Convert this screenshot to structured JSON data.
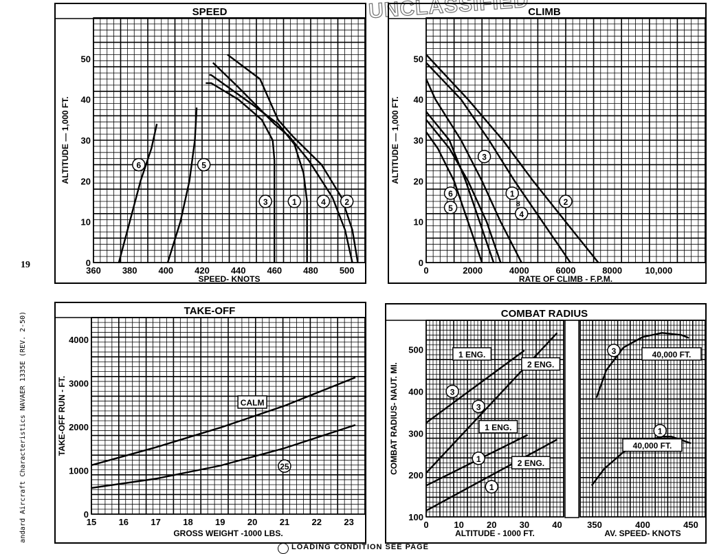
{
  "page_number": "19",
  "side_caption": "andard Aircraft Characteristics NAVAER 1335E (REV. 2-50)",
  "stamp_text": "UNCLASSIFIED",
  "footer_text": "LOADING CONDITION SEE PAGE",
  "chart_data": [
    {
      "id": "speed",
      "type": "line",
      "title": "SPEED",
      "xlabel": "SPEED- KNOTS",
      "ylabel": "ALTITUDE — 1,000 FT.",
      "xlim": [
        360,
        510
      ],
      "ylim": [
        0,
        60
      ],
      "x_ticks": [
        "360",
        "380",
        "400",
        "420",
        "440",
        "460",
        "480",
        "500"
      ],
      "y_ticks": [
        "0",
        "10",
        "20",
        "30",
        "40",
        "50"
      ],
      "grid": true,
      "series": [
        {
          "name": "6",
          "points": [
            [
              374,
              0
            ],
            [
              380,
              10
            ],
            [
              386,
              20
            ],
            [
              392,
              28
            ],
            [
              395,
              34
            ]
          ],
          "label_at": [
            385,
            24
          ]
        },
        {
          "name": "5",
          "points": [
            [
              401,
              0
            ],
            [
              408,
              10
            ],
            [
              413,
              20
            ],
            [
              416,
              30
            ],
            [
              417,
              38
            ]
          ],
          "label_at": [
            421,
            24
          ]
        },
        {
          "name": "3",
          "points": [
            [
              460,
              0
            ],
            [
              460,
              25
            ],
            [
              459,
              30
            ],
            [
              453,
              35
            ],
            [
              440,
              40
            ],
            [
              425,
              44
            ],
            [
              422,
              44
            ]
          ],
          "label_at": [
            455,
            15
          ]
        },
        {
          "name": "1",
          "points": [
            [
              478,
              0
            ],
            [
              478,
              15
            ],
            [
              476,
              22
            ],
            [
              471,
              29
            ],
            [
              462,
              34
            ],
            [
              447,
              39
            ],
            [
              425,
              46
            ],
            [
              424,
              46
            ]
          ],
          "label_at": [
            471,
            15
          ]
        },
        {
          "name": "4",
          "points": [
            [
              503,
              0
            ],
            [
              499,
              8
            ],
            [
              492,
              16
            ],
            [
              479,
              25
            ],
            [
              468,
              31
            ],
            [
              460,
              34
            ],
            [
              440,
              43
            ],
            [
              426,
              49
            ]
          ],
          "label_at": [
            487,
            15
          ]
        },
        {
          "name": "2",
          "points": [
            [
              506,
              0
            ],
            [
              503,
              8
            ],
            [
              497,
              16
            ],
            [
              486,
              24
            ],
            [
              470,
              31
            ],
            [
              462,
              35
            ],
            [
              460,
              37
            ],
            [
              452,
              45
            ],
            [
              434,
              51
            ]
          ],
          "label_at": [
            500,
            15
          ]
        }
      ]
    },
    {
      "id": "climb",
      "type": "line",
      "title": "CLIMB",
      "xlabel": "RATE OF CLIMB - F.P.M.",
      "ylabel": "ALTITUDE — 1,000 FT.",
      "xlim": [
        0,
        12000
      ],
      "ylim": [
        0,
        60
      ],
      "x_ticks": [
        "0",
        "2000",
        "4000",
        "6000",
        "8000",
        "10,000"
      ],
      "y_ticks": [
        "0",
        "10",
        "20",
        "30",
        "40",
        "50"
      ],
      "grid": true,
      "series": [
        {
          "name": "2",
          "points": [
            [
              7400,
              0
            ],
            [
              6000,
              10
            ],
            [
              4600,
              20
            ],
            [
              3300,
              30
            ],
            [
              1800,
              40
            ],
            [
              0,
              51
            ]
          ],
          "label_at": [
            6000,
            15
          ]
        },
        {
          "name": "4",
          "points": [
            [
              6200,
              0
            ],
            [
              5000,
              10
            ],
            [
              3800,
              20
            ],
            [
              2700,
              30
            ],
            [
              1500,
              40
            ],
            [
              0,
              49
            ]
          ],
          "label_at": [
            4100,
            12
          ]
        },
        {
          "name": "1",
          "points": [
            [
              4100,
              0
            ],
            [
              3200,
              10
            ],
            [
              2400,
              20
            ],
            [
              1500,
              30
            ],
            [
              400,
              40
            ],
            [
              0,
              45
            ]
          ],
          "label_at": [
            3700,
            17
          ]
        },
        {
          "name": "3",
          "points": [
            [
              2900,
              0
            ],
            [
              2300,
              10
            ],
            [
              1700,
              20
            ],
            [
              1000,
              30
            ],
            [
              0,
              37
            ]
          ],
          "label_at": [
            2500,
            26
          ]
        },
        {
          "name": "6",
          "points": [
            [
              3200,
              0
            ],
            [
              2600,
              10
            ],
            [
              1800,
              20
            ],
            [
              1000,
              28
            ],
            [
              0,
              35
            ]
          ],
          "label_at": [
            1050,
            17
          ]
        },
        {
          "name": "5",
          "points": [
            [
              2400,
              0
            ],
            [
              1800,
              10
            ],
            [
              1200,
              20
            ],
            [
              500,
              28
            ],
            [
              0,
              32
            ]
          ],
          "label_at": [
            1050,
            13.5
          ]
        }
      ],
      "annotations": [
        {
          "text": "8",
          "at": [
            3950,
            14.5
          ]
        }
      ]
    },
    {
      "id": "takeoff",
      "type": "line",
      "title": "TAKE-OFF",
      "xlabel": "GROSS WEIGHT -1000 LBS.",
      "ylabel": "TAKE-OFF RUN - FT.",
      "xlim": [
        15,
        23.5
      ],
      "ylim": [
        0,
        4500
      ],
      "x_ticks": [
        "15",
        "16",
        "17",
        "18",
        "19",
        "20",
        "21",
        "22",
        "23"
      ],
      "y_ticks": [
        "0",
        "1000",
        "2000",
        "3000",
        "4000"
      ],
      "grid": true,
      "series": [
        {
          "name": "CALM",
          "points": [
            [
              15,
              1120
            ],
            [
              17,
              1530
            ],
            [
              19,
              1980
            ],
            [
              21,
              2480
            ],
            [
              23.2,
              3130
            ]
          ],
          "label_at": [
            20,
            2550
          ]
        },
        {
          "name": "25 KNOT",
          "points": [
            [
              15,
              600
            ],
            [
              17,
              810
            ],
            [
              19,
              1110
            ],
            [
              21,
              1510
            ],
            [
              23.2,
              2040
            ]
          ],
          "label_at": [
            21,
            1100
          ]
        }
      ]
    },
    {
      "id": "combat_radius_altitude",
      "type": "line",
      "title": "COMBAT RADIUS",
      "xlabel": "ALTITUDE - 1000 FT.",
      "ylabel": "COMBAT RADIUS- NAUT. MI.",
      "xlim": [
        0,
        42
      ],
      "ylim": [
        100,
        570
      ],
      "x_ticks": [
        "0",
        "10",
        "20",
        "30",
        "40"
      ],
      "y_ticks": [
        "100",
        "200",
        "300",
        "400",
        "500"
      ],
      "grid": true,
      "series": [
        {
          "name": "3 (1 ENG.)",
          "points": [
            [
              0,
              325
            ],
            [
              30,
              498
            ]
          ],
          "label_at": [
            8,
            400
          ]
        },
        {
          "name": "3 (2 ENG.)",
          "points": [
            [
              0,
              205
            ],
            [
              40,
              540
            ]
          ],
          "label_at": [
            16,
            364
          ]
        },
        {
          "name": "1 (1 ENG.)",
          "points": [
            [
              0,
              175
            ],
            [
              31,
              296
            ]
          ],
          "label_at": [
            16,
            240
          ]
        },
        {
          "name": "1 (2 ENG.)",
          "points": [
            [
              0,
              115
            ],
            [
              40,
              285
            ]
          ],
          "label_at": [
            20,
            172
          ]
        }
      ],
      "annotations": [
        {
          "text": "1 ENG.",
          "at": [
            14,
            488
          ]
        },
        {
          "text": "2 ENG.",
          "at": [
            35,
            464
          ]
        },
        {
          "text": "1 ENG.",
          "at": [
            22,
            314
          ]
        },
        {
          "text": "2 ENG.",
          "at": [
            32,
            228
          ]
        }
      ]
    },
    {
      "id": "combat_radius_speed",
      "type": "line",
      "title": "",
      "xlabel": "AV. SPEED- KNOTS",
      "ylabel": "",
      "xlim": [
        335,
        465
      ],
      "ylim": [
        100,
        570
      ],
      "x_ticks": [
        "350",
        "400",
        "450"
      ],
      "grid": true,
      "series": [
        {
          "name": "3 (40,000 FT.)",
          "points": [
            [
              352,
              385
            ],
            [
              362,
              450
            ],
            [
              380,
              505
            ],
            [
              400,
              530
            ],
            [
              420,
              540
            ],
            [
              440,
              535
            ],
            [
              448,
              528
            ]
          ],
          "label_at": [
            370,
            498
          ]
        },
        {
          "name": "1 (40,000 FT.)",
          "points": [
            [
              347,
              175
            ],
            [
              360,
              215
            ],
            [
              380,
              255
            ],
            [
              405,
              283
            ],
            [
              420,
              292
            ],
            [
              430,
              292
            ],
            [
              450,
              276
            ]
          ],
          "label_at": [
            418,
            306
          ]
        }
      ],
      "annotations": [
        {
          "text": "40,000 FT.",
          "at": [
            430,
            488
          ]
        },
        {
          "text": "40,000 FT.",
          "at": [
            410,
            270
          ]
        }
      ]
    }
  ]
}
